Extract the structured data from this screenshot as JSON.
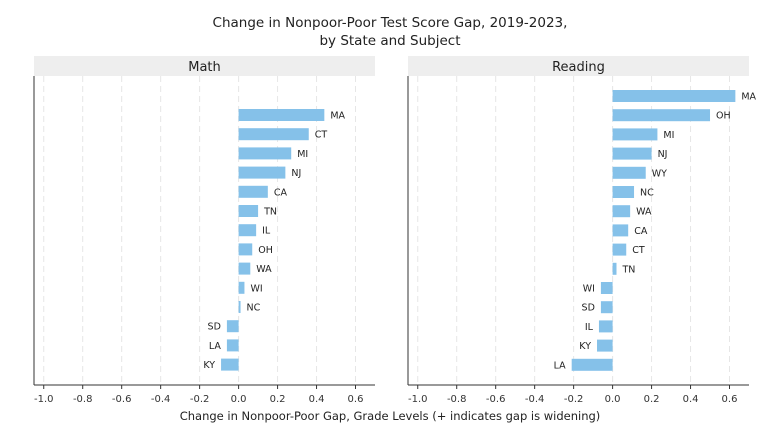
{
  "chart_data": {
    "type": "bar",
    "orientation": "horizontal",
    "title_line1": "Change in Nonpoor-Poor Test Score Gap, 2019-2023,",
    "title_line2": "by State and Subject",
    "xlabel": "Change in Nonpoor-Poor Gap, Grade Levels (+ indicates gap is widening)",
    "xlim": [
      -1.05,
      0.7
    ],
    "xticks": [
      "-1.0",
      "-0.8",
      "-0.6",
      "-0.4",
      "-0.2",
      "0.0",
      "0.2",
      "0.4",
      "0.6"
    ],
    "grid": true,
    "bar_color": "#85C1E9",
    "panels": [
      {
        "subject": "Math",
        "categories": [
          "MA",
          "CT",
          "MI",
          "NJ",
          "CA",
          "TN",
          "IL",
          "OH",
          "WA",
          "WI",
          "NC",
          "SD",
          "LA",
          "KY"
        ],
        "values": [
          0.44,
          0.36,
          0.27,
          0.24,
          0.15,
          0.1,
          0.09,
          0.07,
          0.06,
          0.03,
          0.01,
          -0.06,
          -0.06,
          -0.09
        ]
      },
      {
        "subject": "Reading",
        "categories": [
          "MA",
          "OH",
          "MI",
          "NJ",
          "WY",
          "NC",
          "WA",
          "CA",
          "CT",
          "TN",
          "WI",
          "SD",
          "IL",
          "KY",
          "LA"
        ],
        "values": [
          0.63,
          0.5,
          0.23,
          0.2,
          0.17,
          0.11,
          0.09,
          0.08,
          0.07,
          0.02,
          -0.06,
          -0.06,
          -0.07,
          -0.08,
          -0.21
        ]
      }
    ]
  }
}
